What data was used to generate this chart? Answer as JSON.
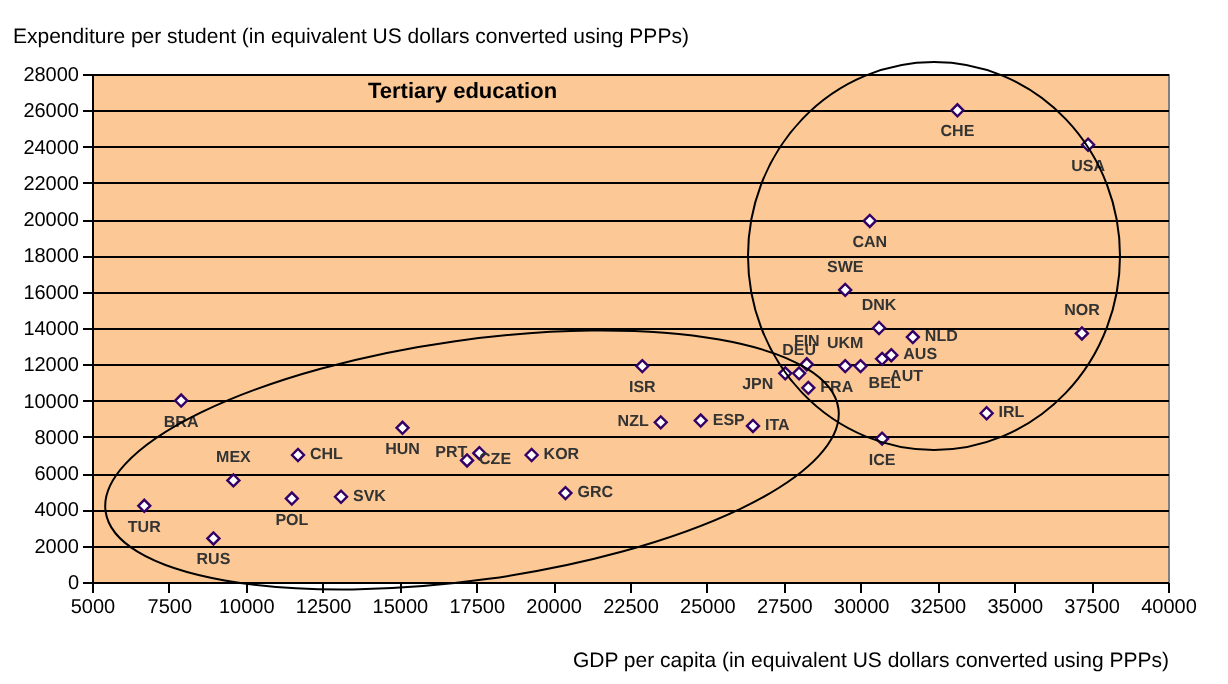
{
  "chart_data": {
    "type": "scatter",
    "title": "Tertiary education",
    "xlabel": "GDP per capita (in equivalent US dollars converted using PPPs)",
    "ylabel": "Expenditure per student (in equivalent US dollars converted using PPPs)",
    "xlim": [
      5000,
      40000
    ],
    "xticks": [
      5000,
      7500,
      10000,
      12500,
      15000,
      17500,
      20000,
      22500,
      25000,
      27500,
      30000,
      32500,
      35000,
      37500,
      40000
    ],
    "ylim": [
      0,
      28000
    ],
    "yticks": [
      0,
      2000,
      4000,
      6000,
      8000,
      10000,
      12000,
      14000,
      16000,
      18000,
      20000,
      22000,
      24000,
      26000,
      28000
    ],
    "grid": "y",
    "marker": "diamond",
    "series": [
      {
        "color": "#330066",
        "x": [
          6700,
          7900,
          8950,
          9600,
          11700,
          11500,
          13100,
          15100,
          17200,
          17600,
          19300,
          20400,
          22900,
          23500,
          24800,
          26500,
          27550,
          28000,
          28250,
          28300,
          29500,
          30000,
          30700,
          31000,
          30600,
          31700,
          29500,
          30700,
          34100,
          33150,
          37400,
          30300,
          37200
        ],
        "values": [
          4200,
          10000,
          2400,
          5600,
          7000,
          4600,
          4700,
          8500,
          6700,
          7100,
          7000,
          4900,
          11900,
          8800,
          8900,
          8600,
          11500,
          11500,
          12000,
          10700,
          11900,
          11900,
          12300,
          12500,
          14000,
          13500,
          16100,
          7900,
          9300,
          26000,
          24100,
          19900,
          13700
        ]
      }
    ],
    "annotations": [
      {
        "text": "TUR",
        "x": 6700,
        "y": 4200
      },
      {
        "text": "BRA",
        "x": 7900,
        "y": 10000
      },
      {
        "text": "RUS",
        "x": 8950,
        "y": 2400
      },
      {
        "text": "MEX",
        "x": 9600,
        "y": 5600
      },
      {
        "text": "CHL",
        "x": 11700,
        "y": 7000
      },
      {
        "text": "POL",
        "x": 11500,
        "y": 4600
      },
      {
        "text": "SVK",
        "x": 13100,
        "y": 4700
      },
      {
        "text": "HUN",
        "x": 15100,
        "y": 8500
      },
      {
        "text": "CZE",
        "x": 17200,
        "y": 6700
      },
      {
        "text": "PRT",
        "x": 17600,
        "y": 7100
      },
      {
        "text": "KOR",
        "x": 19300,
        "y": 7000
      },
      {
        "text": "GRC",
        "x": 20400,
        "y": 4900
      },
      {
        "text": "ISR",
        "x": 22900,
        "y": 11900
      },
      {
        "text": "NZL",
        "x": 23500,
        "y": 8800
      },
      {
        "text": "ESP",
        "x": 24800,
        "y": 8900
      },
      {
        "text": "ITA",
        "x": 26500,
        "y": 8600
      },
      {
        "text": "JPN",
        "x": 27550,
        "y": 11500
      },
      {
        "text": "DEU",
        "x": 28000,
        "y": 11500
      },
      {
        "text": "FIN",
        "x": 28250,
        "y": 12000
      },
      {
        "text": "FRA",
        "x": 28300,
        "y": 10700
      },
      {
        "text": "UKM",
        "x": 29500,
        "y": 11900
      },
      {
        "text": "BEL",
        "x": 30000,
        "y": 11900
      },
      {
        "text": "AUT",
        "x": 30700,
        "y": 12300
      },
      {
        "text": "AUS",
        "x": 31000,
        "y": 12500
      },
      {
        "text": "DNK",
        "x": 30600,
        "y": 14000
      },
      {
        "text": "NLD",
        "x": 31700,
        "y": 13500
      },
      {
        "text": "SWE",
        "x": 29500,
        "y": 16100
      },
      {
        "text": "ICE",
        "x": 30700,
        "y": 7900
      },
      {
        "text": "IRL",
        "x": 34100,
        "y": 9300
      },
      {
        "text": "CHE",
        "x": 33150,
        "y": 26000
      },
      {
        "text": "USA",
        "x": 37400,
        "y": 24100
      },
      {
        "text": "CAN",
        "x": 30300,
        "y": 19900
      },
      {
        "text": "NOR",
        "x": 37200,
        "y": 13700
      }
    ]
  }
}
